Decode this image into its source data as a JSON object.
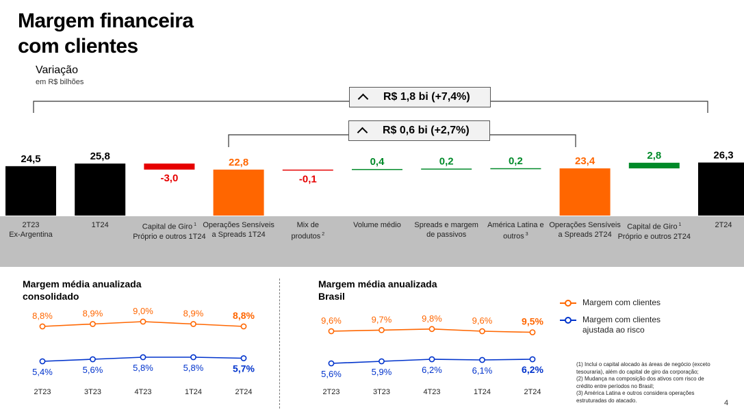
{
  "page": {
    "title_line1": "Margem financeira",
    "title_line2": "com clientes",
    "subtitle": "Variação",
    "unit": "em R$ bilhões",
    "page_number": "4"
  },
  "callouts": {
    "total": "R$ 1,8 bi (+7,4%)",
    "partial": "R$ 0,6 bi (+2,7%)"
  },
  "chart_data": [
    {
      "type": "bar",
      "subtype": "waterfall",
      "title": "Variação",
      "subtitle": "em R$ bilhões",
      "categories": [
        [
          "2T23",
          "Ex-Argentina"
        ],
        [
          "1T24"
        ],
        [
          "Capital de Giro",
          "Próprio e outros 1T24"
        ],
        [
          "Operações Sensíveis",
          "a Spreads 1T24"
        ],
        [
          "Mix de",
          "produtos"
        ],
        [
          "Volume médio"
        ],
        [
          "Spreads e margem",
          "de passivos"
        ],
        [
          "América Latina e",
          "outros"
        ],
        [
          "Operações Sensíveis",
          "a Spreads 2T24"
        ],
        [
          "Capital de Giro",
          "Próprio e outros 2T24"
        ],
        [
          "2T24"
        ]
      ],
      "category_footnotes": [
        "",
        "",
        "1",
        "",
        "2",
        "",
        "",
        "3",
        "",
        "1",
        ""
      ],
      "values": [
        24.5,
        25.8,
        -3.0,
        22.8,
        -0.1,
        0.4,
        0.2,
        0.2,
        23.4,
        2.8,
        26.3
      ],
      "value_labels": [
        "24,5",
        "25,8",
        "-3,0",
        "22,8",
        "-0,1",
        "0,4",
        "0,2",
        "0,2",
        "23,4",
        "2,8",
        "26,3"
      ],
      "bar_kinds": [
        "total",
        "total",
        "delta",
        "subtotal",
        "delta",
        "delta",
        "delta",
        "delta",
        "subtotal",
        "delta",
        "total"
      ],
      "colors": {
        "total": "#000000",
        "subtotal": "#ff6600",
        "positive": "#008a29",
        "negative": "#e60000",
        "negative_label": "#e60000",
        "positive_label": "#008a29",
        "subtotal_label": "#ff6600"
      }
    },
    {
      "type": "line",
      "title_line1": "Margem média anualizada",
      "title_line2": "consolidado",
      "categories": [
        "2T23",
        "3T23",
        "4T23",
        "1T24",
        "2T24"
      ],
      "series": [
        {
          "name": "Margem com clientes",
          "values": [
            8.8,
            8.9,
            9.0,
            8.9,
            8.8
          ],
          "labels": [
            "8,8%",
            "8,9%",
            "9,0%",
            "8,9%",
            "8,8%"
          ],
          "color": "#ff6600"
        },
        {
          "name": "Margem com clientes ajustada ao risco",
          "values": [
            5.4,
            5.6,
            5.8,
            5.8,
            5.7
          ],
          "labels": [
            "5,4%",
            "5,6%",
            "5,8%",
            "5,8%",
            "5,7%"
          ],
          "color": "#0033cc"
        }
      ]
    },
    {
      "type": "line",
      "title_line1": "Margem média anualizada",
      "title_line2": "Brasil",
      "categories": [
        "2T23",
        "3T23",
        "4T23",
        "1T24",
        "2T24"
      ],
      "series": [
        {
          "name": "Margem com clientes",
          "values": [
            9.6,
            9.7,
            9.8,
            9.6,
            9.5
          ],
          "labels": [
            "9,6%",
            "9,7%",
            "9,8%",
            "9,6%",
            "9,5%"
          ],
          "color": "#ff6600"
        },
        {
          "name": "Margem com clientes ajustada ao risco",
          "values": [
            5.6,
            5.9,
            6.2,
            6.1,
            6.2
          ],
          "labels": [
            "5,6%",
            "5,9%",
            "6,2%",
            "6,1%",
            "6,2%"
          ],
          "color": "#0033cc"
        }
      ]
    }
  ],
  "legend": {
    "item1": "Margem com clientes",
    "item2_line1": "Margem com clientes",
    "item2_line2": "ajustada ao risco"
  },
  "footnotes": {
    "n1": "(1) Inclui o capital alocado às áreas de negócio (exceto tesouraria), além do capital de giro da corporação;",
    "n2": "(2) Mudança na composição dos ativos com risco de crédito entre períodos no Brasil;",
    "n3": "(3) América Latina e outros considera operações estruturadas do atacado."
  }
}
